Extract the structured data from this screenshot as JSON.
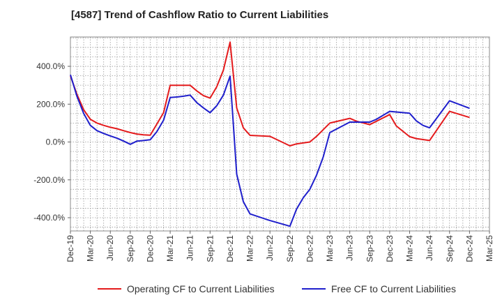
{
  "title": "[4587]  Trend of Cashflow Ratio to Current Liabilities",
  "chart_data": {
    "type": "line",
    "title": "[4587]  Trend of Cashflow Ratio to Current Liabilities",
    "xlabel": "",
    "ylabel": "",
    "x_tick_labels": [
      "Dec-19",
      "Mar-20",
      "Jun-20",
      "Sep-20",
      "Dec-20",
      "Mar-21",
      "Jun-21",
      "Sep-21",
      "Dec-21",
      "Mar-22",
      "Jun-22",
      "Sep-22",
      "Dec-22",
      "Mar-23",
      "Jun-23",
      "Sep-23",
      "Dec-23",
      "Mar-24",
      "Jun-24",
      "Sep-24",
      "Dec-24",
      "Mar-25"
    ],
    "y_tick_values": [
      400,
      200,
      0,
      -200,
      -400
    ],
    "y_tick_labels": [
      "400.0%",
      "200.0%",
      "0.0%",
      "-200.0%",
      "-400.0%"
    ],
    "xlim": [
      "2019-12",
      "2025-03"
    ],
    "ylim": [
      -470,
      555
    ],
    "grid": true,
    "legend_position": "bottom",
    "series": [
      {
        "name": "Operating CF to Current Liabilities",
        "color": "#e41a1c",
        "x": [
          "2019-12",
          "2020-01",
          "2020-02",
          "2020-03",
          "2020-04",
          "2020-05",
          "2020-06",
          "2020-07",
          "2020-08",
          "2020-09",
          "2020-10",
          "2020-11",
          "2020-12",
          "2021-01",
          "2021-02",
          "2021-03",
          "2021-04",
          "2021-05",
          "2021-06",
          "2021-07",
          "2021-08",
          "2021-09",
          "2021-10",
          "2021-11",
          "2021-12",
          "2022-01",
          "2022-02",
          "2022-03",
          "2022-06",
          "2022-09",
          "2022-10",
          "2022-12",
          "2023-01",
          "2023-03",
          "2023-06",
          "2023-07",
          "2023-09",
          "2023-12",
          "2024-01",
          "2024-03",
          "2024-04",
          "2024-06",
          "2024-09",
          "2024-12"
        ],
        "y": [
          350,
          250,
          170,
          120,
          100,
          88,
          78,
          70,
          60,
          50,
          42,
          38,
          36,
          95,
          155,
          300,
          300,
          300,
          300,
          270,
          245,
          232,
          292,
          380,
          528,
          180,
          75,
          35,
          30,
          -20,
          -10,
          0,
          30,
          100,
          125,
          110,
          92,
          145,
          85,
          28,
          18,
          8,
          162,
          130
        ]
      },
      {
        "name": "Free CF to Current Liabilities",
        "color": "#1f1fcc",
        "x": [
          "2019-12",
          "2020-01",
          "2020-02",
          "2020-03",
          "2020-04",
          "2020-05",
          "2020-06",
          "2020-07",
          "2020-08",
          "2020-09",
          "2020-10",
          "2020-11",
          "2020-12",
          "2021-01",
          "2021-02",
          "2021-03",
          "2021-04",
          "2021-05",
          "2021-06",
          "2021-07",
          "2021-08",
          "2021-09",
          "2021-10",
          "2021-11",
          "2021-12",
          "2022-01",
          "2022-02",
          "2022-03",
          "2022-06",
          "2022-09",
          "2022-10",
          "2022-11",
          "2022-12",
          "2023-01",
          "2023-02",
          "2023-03",
          "2023-06",
          "2023-09",
          "2023-10",
          "2023-12",
          "2024-03",
          "2024-04",
          "2024-05",
          "2024-06",
          "2024-09",
          "2024-12"
        ],
        "y": [
          355,
          240,
          150,
          88,
          60,
          45,
          32,
          20,
          5,
          -12,
          5,
          8,
          12,
          55,
          115,
          235,
          238,
          242,
          248,
          208,
          180,
          155,
          192,
          248,
          348,
          -170,
          -315,
          -380,
          -415,
          -445,
          -355,
          -295,
          -250,
          -175,
          -80,
          50,
          105,
          105,
          120,
          162,
          152,
          112,
          88,
          75,
          218,
          178
        ]
      }
    ]
  }
}
